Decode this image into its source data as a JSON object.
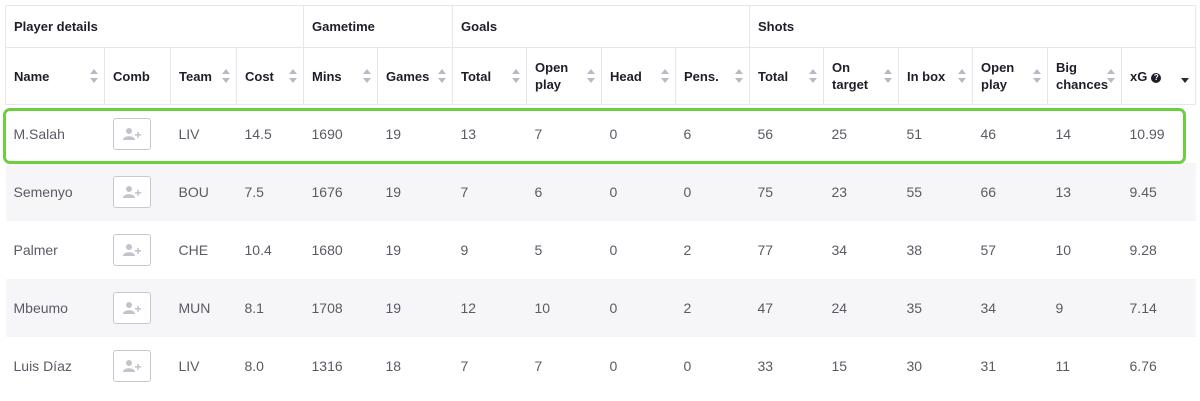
{
  "groups": {
    "player_details": "Player details",
    "gametime": "Gametime",
    "goals": "Goals",
    "shots": "Shots"
  },
  "columns": {
    "name": "Name",
    "comb": "Comb",
    "team": "Team",
    "cost": "Cost",
    "mins": "Mins",
    "games": "Games",
    "goals_total": "Total",
    "goals_open_play_1": "Open",
    "goals_open_play_2": "play",
    "head": "Head",
    "pens": "Pens.",
    "shots_total": "Total",
    "on_target_1": "On",
    "on_target_2": "target",
    "in_box": "In box",
    "shots_open_play_1": "Open",
    "shots_open_play_2": "play",
    "big_chances_1": "Big",
    "big_chances_2": "chances",
    "xg": "xG",
    "xg_info": "?"
  },
  "sort": {
    "active_column": "xG",
    "direction": "descending"
  },
  "highlight_color": "#6dcf3f",
  "rows": [
    {
      "name": "M.Salah",
      "team": "LIV",
      "cost": "14.5",
      "mins": "1690",
      "games": "19",
      "goals_total": "13",
      "goals_open": "7",
      "head": "0",
      "pens": "6",
      "shots_total": "56",
      "on_target": "25",
      "in_box": "51",
      "shots_open": "46",
      "big_chances": "14",
      "xg": "10.99"
    },
    {
      "name": "Semenyo",
      "team": "BOU",
      "cost": "7.5",
      "mins": "1676",
      "games": "19",
      "goals_total": "7",
      "goals_open": "6",
      "head": "0",
      "pens": "0",
      "shots_total": "75",
      "on_target": "23",
      "in_box": "55",
      "shots_open": "66",
      "big_chances": "13",
      "xg": "9.45"
    },
    {
      "name": "Palmer",
      "team": "CHE",
      "cost": "10.4",
      "mins": "1680",
      "games": "19",
      "goals_total": "9",
      "goals_open": "5",
      "head": "0",
      "pens": "2",
      "shots_total": "77",
      "on_target": "34",
      "in_box": "38",
      "shots_open": "57",
      "big_chances": "10",
      "xg": "9.28"
    },
    {
      "name": "Mbeumo",
      "team": "MUN",
      "cost": "8.1",
      "mins": "1708",
      "games": "19",
      "goals_total": "12",
      "goals_open": "10",
      "head": "0",
      "pens": "2",
      "shots_total": "47",
      "on_target": "24",
      "in_box": "35",
      "shots_open": "34",
      "big_chances": "9",
      "xg": "7.14"
    },
    {
      "name": "Luis Díaz",
      "team": "LIV",
      "cost": "8.0",
      "mins": "1316",
      "games": "18",
      "goals_total": "7",
      "goals_open": "7",
      "head": "0",
      "pens": "0",
      "shots_total": "33",
      "on_target": "15",
      "in_box": "30",
      "shots_open": "31",
      "big_chances": "11",
      "xg": "6.76"
    }
  ]
}
